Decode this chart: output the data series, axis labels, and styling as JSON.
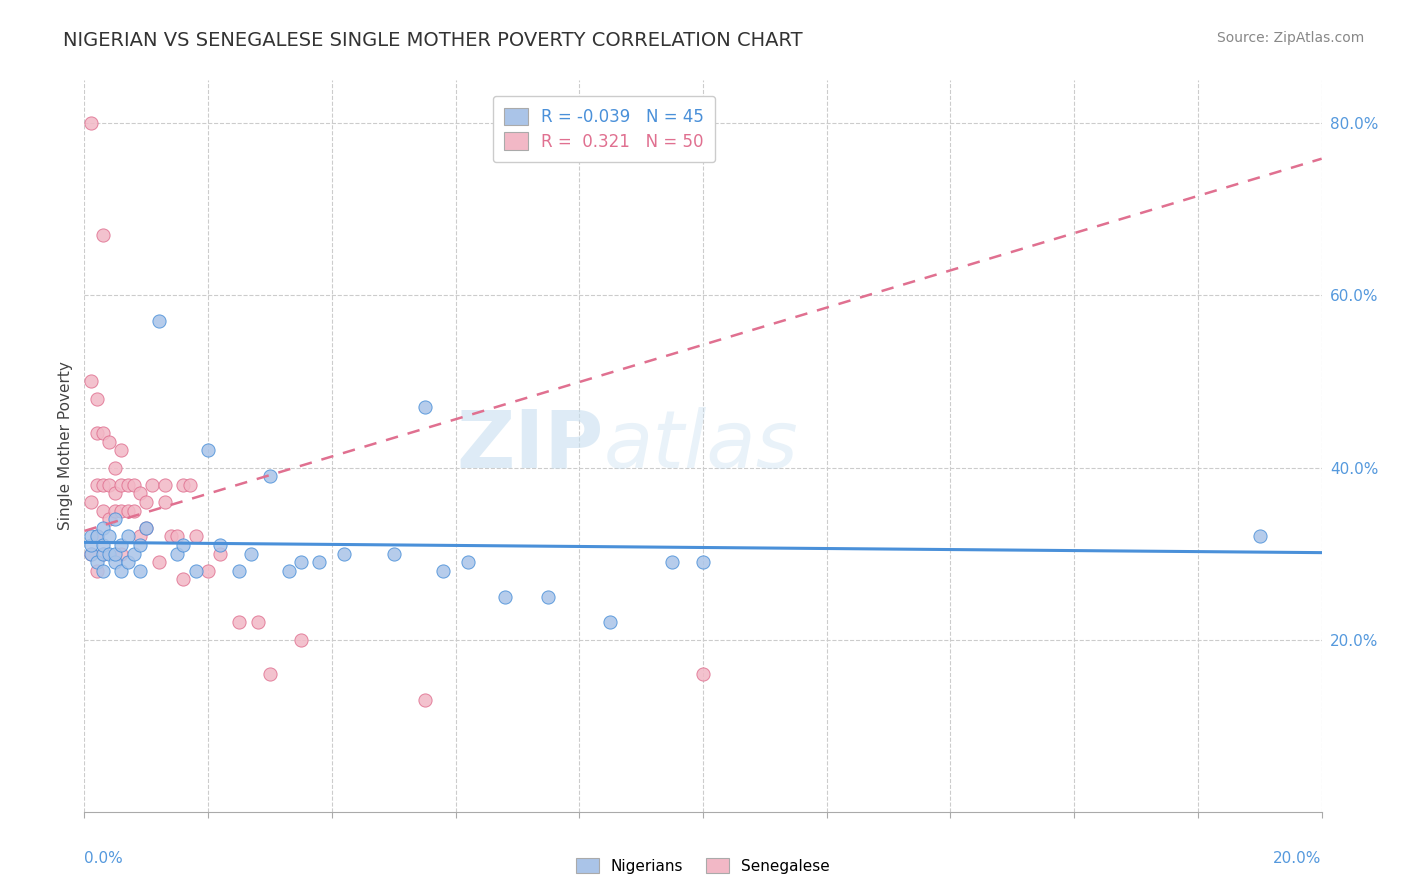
{
  "title": "NIGERIAN VS SENEGALESE SINGLE MOTHER POVERTY CORRELATION CHART",
  "source": "Source: ZipAtlas.com",
  "ylabel": "Single Mother Poverty",
  "legend_nigerians": "Nigerians",
  "legend_senegalese": "Senegalese",
  "R_nigerian": -0.039,
  "N_nigerian": 45,
  "R_senegalese": 0.321,
  "N_senegalese": 50,
  "color_nigerian": "#aac4e8",
  "color_senegalese": "#f2b8c6",
  "color_nigerian_line": "#4a90d9",
  "color_senegalese_line": "#e07090",
  "watermark_zip": "ZIP",
  "watermark_atlas": "atlas",
  "nigerian_scatter_x": [
    0.001,
    0.001,
    0.001,
    0.002,
    0.002,
    0.003,
    0.003,
    0.003,
    0.003,
    0.004,
    0.004,
    0.005,
    0.005,
    0.005,
    0.006,
    0.006,
    0.007,
    0.007,
    0.008,
    0.009,
    0.009,
    0.01,
    0.012,
    0.015,
    0.016,
    0.018,
    0.02,
    0.022,
    0.025,
    0.027,
    0.03,
    0.033,
    0.035,
    0.038,
    0.042,
    0.05,
    0.055,
    0.058,
    0.062,
    0.068,
    0.075,
    0.085,
    0.095,
    0.1,
    0.19
  ],
  "nigerian_scatter_y": [
    0.3,
    0.31,
    0.32,
    0.29,
    0.32,
    0.28,
    0.3,
    0.31,
    0.33,
    0.3,
    0.32,
    0.29,
    0.3,
    0.34,
    0.28,
    0.31,
    0.29,
    0.32,
    0.3,
    0.28,
    0.31,
    0.33,
    0.57,
    0.3,
    0.31,
    0.28,
    0.42,
    0.31,
    0.28,
    0.3,
    0.39,
    0.28,
    0.29,
    0.29,
    0.3,
    0.3,
    0.47,
    0.28,
    0.29,
    0.25,
    0.25,
    0.22,
    0.29,
    0.29,
    0.32
  ],
  "senegalese_scatter_x": [
    0.001,
    0.001,
    0.001,
    0.001,
    0.002,
    0.002,
    0.002,
    0.002,
    0.002,
    0.003,
    0.003,
    0.003,
    0.003,
    0.003,
    0.004,
    0.004,
    0.004,
    0.005,
    0.005,
    0.005,
    0.006,
    0.006,
    0.006,
    0.006,
    0.007,
    0.007,
    0.008,
    0.008,
    0.009,
    0.009,
    0.01,
    0.01,
    0.011,
    0.012,
    0.013,
    0.013,
    0.014,
    0.015,
    0.016,
    0.016,
    0.017,
    0.018,
    0.02,
    0.022,
    0.025,
    0.028,
    0.03,
    0.035,
    0.055,
    0.1
  ],
  "senegalese_scatter_y": [
    0.8,
    0.5,
    0.36,
    0.3,
    0.48,
    0.44,
    0.38,
    0.32,
    0.28,
    0.67,
    0.44,
    0.38,
    0.35,
    0.3,
    0.43,
    0.38,
    0.34,
    0.4,
    0.37,
    0.35,
    0.42,
    0.38,
    0.35,
    0.3,
    0.38,
    0.35,
    0.38,
    0.35,
    0.37,
    0.32,
    0.36,
    0.33,
    0.38,
    0.29,
    0.36,
    0.38,
    0.32,
    0.32,
    0.38,
    0.27,
    0.38,
    0.32,
    0.28,
    0.3,
    0.22,
    0.22,
    0.16,
    0.2,
    0.13,
    0.16
  ],
  "xmin": 0.0,
  "xmax": 0.2,
  "ymin": 0.0,
  "ymax": 0.85,
  "ytick_vals": [
    0.2,
    0.4,
    0.6,
    0.8
  ],
  "ytick_labels": [
    "20.0%",
    "40.0%",
    "60.0%",
    "80.0%"
  ],
  "title_fontsize": 14,
  "source_fontsize": 10,
  "axis_label_color": "#5599dd"
}
